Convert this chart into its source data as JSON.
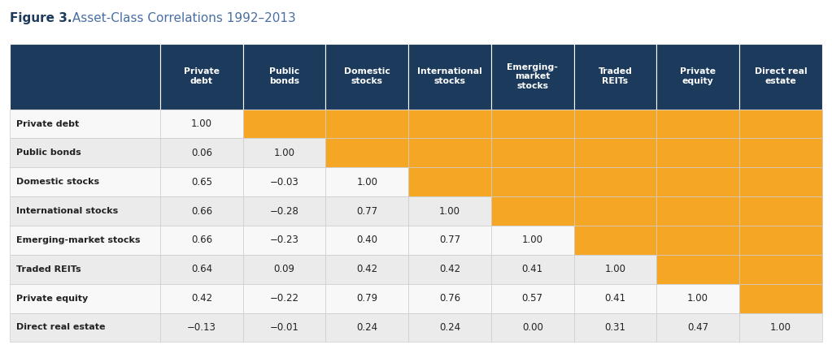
{
  "title_bold": "Figure 3.",
  "title_normal": " Asset-Class Correlations 1992–2013",
  "col_headers": [
    "Private\ndebt",
    "Public\nbonds",
    "Domestic\nstocks",
    "International\nstocks",
    "Emerging-\nmarket\nstocks",
    "Traded\nREITs",
    "Private\nequity",
    "Direct real\nestate"
  ],
  "row_headers": [
    "Private debt",
    "Public bonds",
    "Domestic stocks",
    "International stocks",
    "Emerging-market stocks",
    "Traded REITs",
    "Private equity",
    "Direct real estate"
  ],
  "data": [
    [
      "1.00",
      "",
      "",
      "",
      "",
      "",
      "",
      ""
    ],
    [
      "0.06",
      "1.00",
      "",
      "",
      "",
      "",
      "",
      ""
    ],
    [
      "0.65",
      "−0.03",
      "1.00",
      "",
      "",
      "",
      "",
      ""
    ],
    [
      "0.66",
      "−0.28",
      "0.77",
      "1.00",
      "",
      "",
      "",
      ""
    ],
    [
      "0.66",
      "−0.23",
      "0.40",
      "0.77",
      "1.00",
      "",
      "",
      ""
    ],
    [
      "0.64",
      "0.09",
      "0.42",
      "0.42",
      "0.41",
      "1.00",
      "",
      ""
    ],
    [
      "0.42",
      "−0.22",
      "0.79",
      "0.76",
      "0.57",
      "0.41",
      "1.00",
      ""
    ],
    [
      "−0.13",
      "−0.01",
      "0.24",
      "0.24",
      "0.00",
      "0.31",
      "0.47",
      "1.00"
    ]
  ],
  "orange_cells": [
    [
      0,
      1
    ],
    [
      0,
      2
    ],
    [
      0,
      3
    ],
    [
      0,
      4
    ],
    [
      0,
      5
    ],
    [
      0,
      6
    ],
    [
      0,
      7
    ],
    [
      1,
      2
    ],
    [
      1,
      3
    ],
    [
      1,
      4
    ],
    [
      1,
      5
    ],
    [
      1,
      6
    ],
    [
      1,
      7
    ],
    [
      2,
      3
    ],
    [
      2,
      4
    ],
    [
      2,
      5
    ],
    [
      2,
      6
    ],
    [
      2,
      7
    ],
    [
      3,
      4
    ],
    [
      3,
      5
    ],
    [
      3,
      6
    ],
    [
      3,
      7
    ],
    [
      4,
      5
    ],
    [
      4,
      6
    ],
    [
      4,
      7
    ],
    [
      5,
      6
    ],
    [
      5,
      7
    ],
    [
      6,
      7
    ]
  ],
  "header_bg": "#1b3a5c",
  "header_fg": "#ffffff",
  "orange_color": "#f5a624",
  "row_bg_odd": "#ebebeb",
  "row_bg_even": "#f8f8f8",
  "border_color": "#cccccc",
  "text_color": "#222222",
  "bold_row_color": "#222222",
  "title_bold_color": "#1b3a5c",
  "title_normal_color": "#4a6fa5",
  "fig_width": 10.23,
  "fig_height": 4.3
}
